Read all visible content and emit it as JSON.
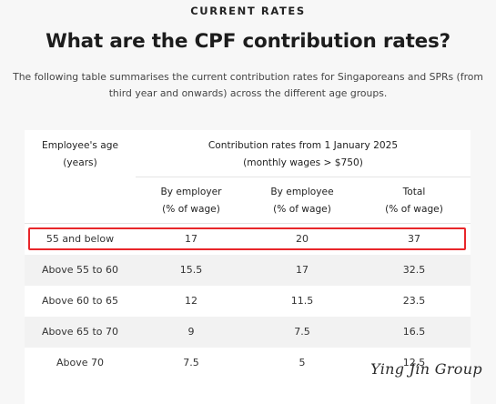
{
  "section": {
    "eyebrow": "CURRENT RATES",
    "title": "What are the CPF contribution rates?",
    "subtitle_line1": "The following table summarises the current contribution rates for Singaporeans and SPRs (from",
    "subtitle_line2": "third year and onwards) across the different age groups."
  },
  "table": {
    "age_header_line1": "Employee's age",
    "age_header_line2": "(years)",
    "group_header_line1": "Contribution rates from 1 January 2025",
    "group_header_line2": "(monthly wages > $750)",
    "columns": [
      {
        "line1": "By employer",
        "line2": "(% of wage)"
      },
      {
        "line1": "By employee",
        "line2": "(% of wage)"
      },
      {
        "line1": "Total",
        "line2": "(% of wage)"
      }
    ],
    "rows": [
      [
        "55 and below",
        "17",
        "20",
        "37"
      ],
      [
        "Above 55 to 60",
        "15.5",
        "17",
        "32.5"
      ],
      [
        "Above 60 to 65",
        "12",
        "11.5",
        "23.5"
      ],
      [
        "Above 65 to 70",
        "9",
        "7.5",
        "16.5"
      ],
      [
        "Above 70",
        "7.5",
        "5",
        "12.5"
      ]
    ],
    "highlighted_row": 0
  },
  "watermark": "Ying Jin Group",
  "colors": {
    "highlight_border": "#e8262a",
    "shaded_row": "#f2f2f2",
    "page_background": "#f7f7f7"
  }
}
